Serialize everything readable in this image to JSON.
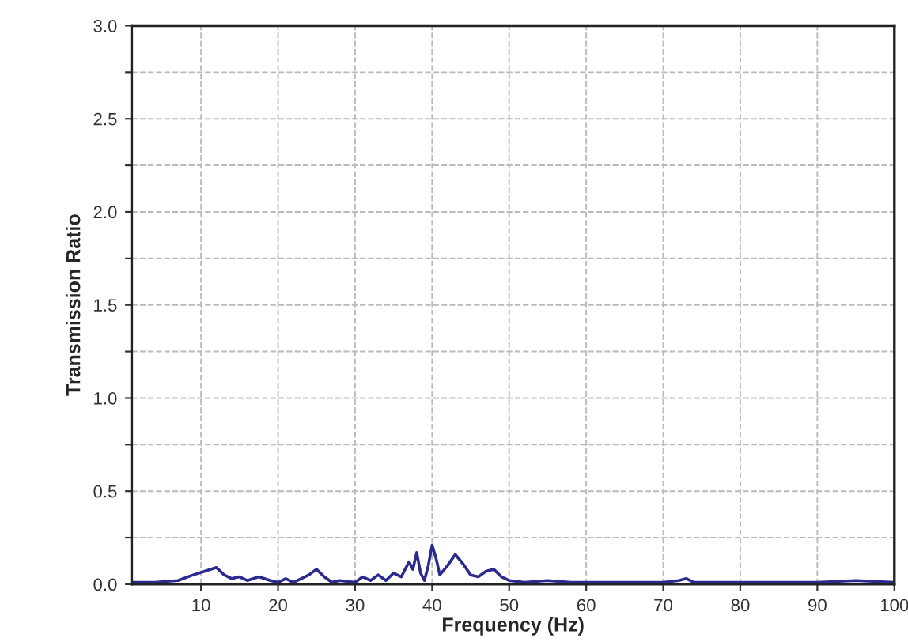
{
  "chart_data": {
    "type": "line",
    "xlabel": "Frequency (Hz)",
    "ylabel": "Transmission Ratio",
    "xlim": [
      1,
      100
    ],
    "ylim": [
      0,
      3.0
    ],
    "xticks": [
      10,
      20,
      30,
      40,
      50,
      60,
      70,
      80,
      90,
      100
    ],
    "yticks": [
      {
        "value": 0,
        "label": "0.0"
      },
      {
        "value": 0.25,
        "label": null
      },
      {
        "value": 0.5,
        "label": "0.5"
      },
      {
        "value": 0.75,
        "label": null
      },
      {
        "value": 1.0,
        "label": "1.0"
      },
      {
        "value": 1.25,
        "label": null
      },
      {
        "value": 1.5,
        "label": "1.5"
      },
      {
        "value": 1.75,
        "label": null
      },
      {
        "value": 2.0,
        "label": "2.0"
      },
      {
        "value": 2.25,
        "label": null
      },
      {
        "value": 2.5,
        "label": "2.5"
      },
      {
        "value": 2.75,
        "label": null
      },
      {
        "value": 3.0,
        "label": "3.0"
      }
    ],
    "grid": true,
    "legend": false,
    "marker": "none",
    "line_style": "solid",
    "series": [
      {
        "color": "#2b2b8f",
        "x": [
          1,
          4,
          7,
          9,
          10.5,
          12,
          13,
          14,
          15,
          16,
          17.5,
          19,
          20,
          21,
          22,
          23,
          24,
          25,
          26,
          27,
          28,
          30,
          31,
          32,
          33,
          34,
          35,
          36,
          37,
          37.5,
          38,
          38.5,
          39,
          39.5,
          40,
          40.5,
          41,
          42,
          43,
          44,
          45,
          46,
          47,
          48,
          49,
          50,
          52,
          55,
          58,
          60,
          65,
          70,
          72,
          73,
          74,
          76,
          80,
          85,
          90,
          95,
          100
        ],
        "values": [
          0.01,
          0.01,
          0.02,
          0.05,
          0.07,
          0.09,
          0.05,
          0.03,
          0.04,
          0.02,
          0.04,
          0.02,
          0.01,
          0.03,
          0.01,
          0.03,
          0.05,
          0.08,
          0.04,
          0.01,
          0.02,
          0.01,
          0.04,
          0.02,
          0.05,
          0.02,
          0.06,
          0.04,
          0.12,
          0.08,
          0.17,
          0.06,
          0.02,
          0.1,
          0.21,
          0.14,
          0.05,
          0.1,
          0.16,
          0.11,
          0.05,
          0.04,
          0.07,
          0.08,
          0.04,
          0.02,
          0.01,
          0.02,
          0.01,
          0.01,
          0.01,
          0.01,
          0.02,
          0.03,
          0.01,
          0.01,
          0.01,
          0.01,
          0.01,
          0.02,
          0.01
        ]
      }
    ]
  }
}
